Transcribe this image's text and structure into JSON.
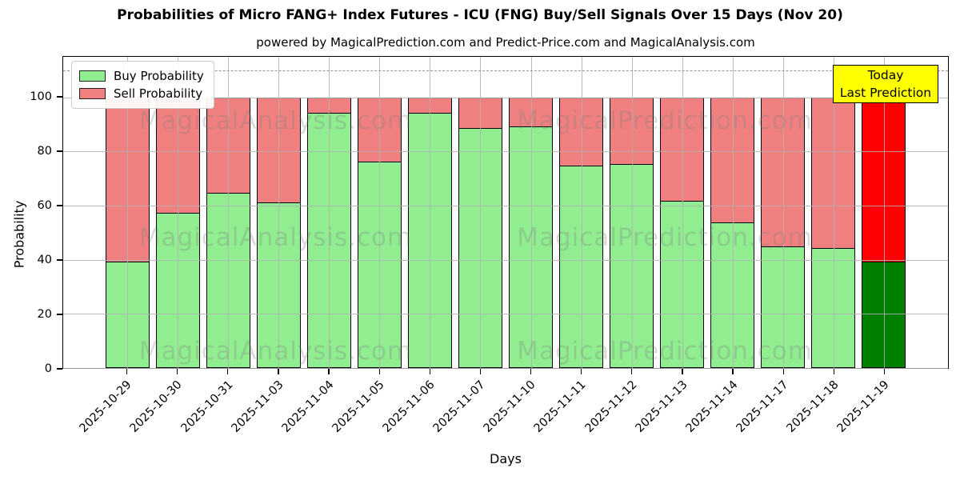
{
  "title": "Probabilities of Micro FANG+ Index Futures - ICU (FNG) Buy/Sell Signals Over 15 Days (Nov 20)",
  "subtitle": "powered by MagicalPrediction.com and Predict-Price.com and MagicalAnalysis.com",
  "today_annotation": {
    "line1": "Today",
    "line2": "Last Prediction",
    "bg_color": "#FFFF00"
  },
  "watermark_texts": [
    "MagicalAnalysis.com",
    "MagicalPrediction.com"
  ],
  "colors": {
    "buy": "#90EE90",
    "sell": "#F08080",
    "today_buy": "#008000",
    "today_sell": "#FF0000",
    "grid": "#B0B0B0",
    "bar_edge": "#000000"
  },
  "chart_data": {
    "type": "bar",
    "stacked": true,
    "title": "Probabilities of Micro FANG+ Index Futures - ICU (FNG) Buy/Sell Signals Over 15 Days (Nov 20)",
    "xlabel": "Days",
    "ylabel": "Probability",
    "categories": [
      "2025-10-29",
      "2025-10-30",
      "2025-10-31",
      "2025-11-03",
      "2025-11-04",
      "2025-11-05",
      "2025-11-06",
      "2025-11-07",
      "2025-11-10",
      "2025-11-11",
      "2025-11-12",
      "2025-11-13",
      "2025-11-14",
      "2025-11-17",
      "2025-11-18",
      "2025-11-19"
    ],
    "series": [
      {
        "name": "Buy Probability",
        "color": "#90EE90",
        "today_color": "#008000",
        "values": [
          39,
          57,
          64.5,
          61,
          94,
          76,
          94,
          88.5,
          89,
          74.5,
          75,
          61.5,
          53.5,
          44.5,
          44,
          39
        ]
      },
      {
        "name": "Sell Probability",
        "color": "#F08080",
        "today_color": "#FF0000",
        "values": [
          61,
          43,
          35.5,
          39,
          6,
          24,
          6,
          11.5,
          11,
          25.5,
          25,
          38.5,
          46.5,
          55.5,
          56,
          61
        ]
      }
    ],
    "yticks": [
      0,
      20,
      40,
      60,
      80,
      100
    ],
    "ylim": [
      0,
      115
    ],
    "dashed_line_y": 110,
    "today_index": 15,
    "grid": true,
    "legend_position": "upper-left"
  }
}
